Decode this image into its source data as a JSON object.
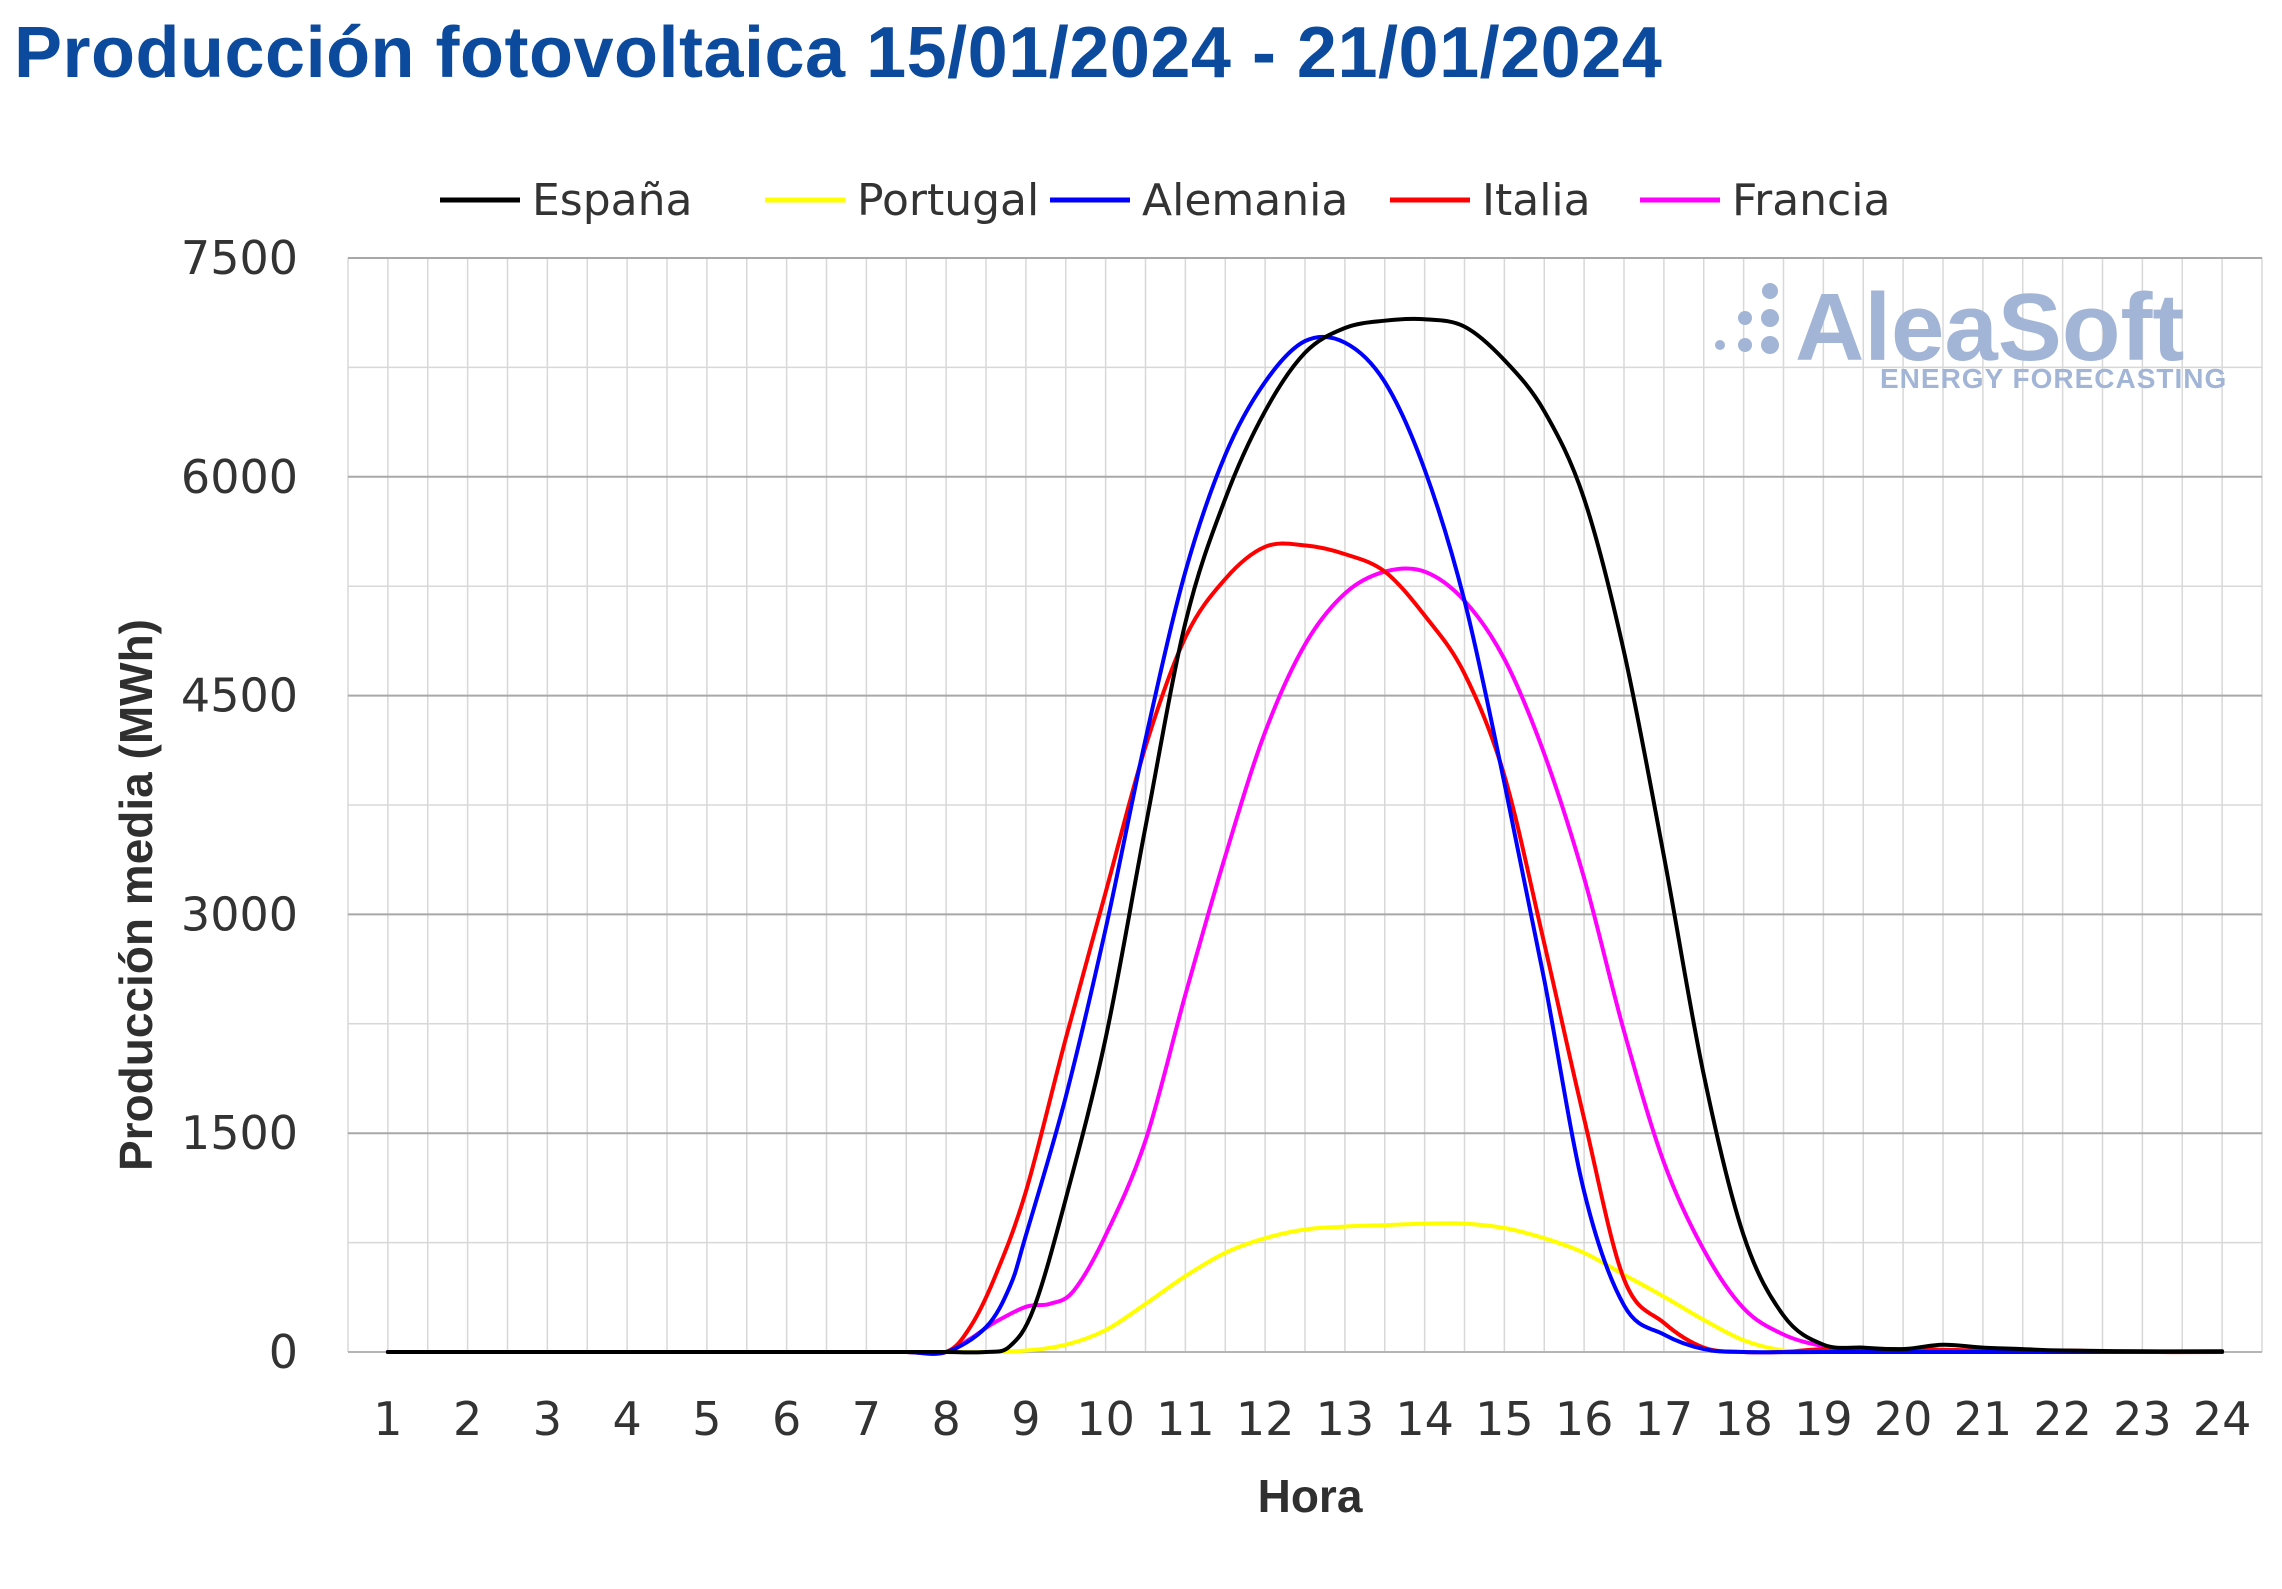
{
  "title": "Producción fotovoltaica 15/01/2024 - 21/01/2024",
  "watermark": {
    "name": "AleaSoft",
    "tagline": "ENERGY FORECASTING",
    "color": "#a3b5d6"
  },
  "chart_data": {
    "type": "line",
    "xlabel": "Hora",
    "ylabel": "Producción media (MWh)",
    "ylim": [
      0,
      7500
    ],
    "yticks": [
      0,
      1500,
      3000,
      4500,
      6000,
      7500
    ],
    "x": [
      1,
      2,
      3,
      4,
      5,
      6,
      7,
      8,
      9,
      10,
      11,
      12,
      13,
      14,
      15,
      16,
      17,
      18,
      19,
      20,
      21,
      22,
      23,
      24
    ],
    "legend_position": "top",
    "grid": true,
    "series": [
      {
        "name": "España",
        "color": "#000000",
        "points": [
          [
            1,
            0
          ],
          [
            2,
            0
          ],
          [
            3,
            0
          ],
          [
            4,
            0
          ],
          [
            5,
            0
          ],
          [
            6,
            0
          ],
          [
            7,
            0
          ],
          [
            7.5,
            0
          ],
          [
            8,
            0
          ],
          [
            8.5,
            0
          ],
          [
            8.8,
            40
          ],
          [
            9.1,
            300
          ],
          [
            9.5,
            1050
          ],
          [
            10,
            2150
          ],
          [
            10.5,
            3600
          ],
          [
            11,
            5000
          ],
          [
            11.5,
            5850
          ],
          [
            12,
            6450
          ],
          [
            12.5,
            6850
          ],
          [
            13,
            7020
          ],
          [
            13.5,
            7070
          ],
          [
            14,
            7080
          ],
          [
            14.5,
            7030
          ],
          [
            15,
            6800
          ],
          [
            15.5,
            6450
          ],
          [
            16,
            5850
          ],
          [
            16.5,
            4800
          ],
          [
            17,
            3400
          ],
          [
            17.5,
            1900
          ],
          [
            18,
            800
          ],
          [
            18.5,
            250
          ],
          [
            19,
            50
          ],
          [
            19.5,
            30
          ],
          [
            20,
            20
          ],
          [
            20.5,
            50
          ],
          [
            21,
            30
          ],
          [
            21.5,
            20
          ],
          [
            22,
            10
          ],
          [
            23,
            5
          ],
          [
            24,
            5
          ]
        ]
      },
      {
        "name": "Portugal",
        "color": "#ffff00",
        "points": [
          [
            1,
            0
          ],
          [
            2,
            0
          ],
          [
            3,
            0
          ],
          [
            4,
            0
          ],
          [
            5,
            0
          ],
          [
            6,
            0
          ],
          [
            7,
            0
          ],
          [
            7.5,
            0
          ],
          [
            8,
            0
          ],
          [
            8.5,
            0
          ],
          [
            9,
            10
          ],
          [
            9.5,
            50
          ],
          [
            10,
            150
          ],
          [
            10.5,
            330
          ],
          [
            11,
            520
          ],
          [
            11.5,
            680
          ],
          [
            12,
            780
          ],
          [
            12.5,
            840
          ],
          [
            13,
            860
          ],
          [
            13.5,
            870
          ],
          [
            14,
            880
          ],
          [
            14.5,
            880
          ],
          [
            15,
            850
          ],
          [
            15.5,
            780
          ],
          [
            16,
            680
          ],
          [
            16.5,
            530
          ],
          [
            17,
            380
          ],
          [
            17.5,
            220
          ],
          [
            18,
            80
          ],
          [
            18.5,
            10
          ],
          [
            19,
            0
          ],
          [
            20,
            0
          ],
          [
            21,
            0
          ],
          [
            22,
            0
          ],
          [
            23,
            0
          ],
          [
            24,
            0
          ]
        ]
      },
      {
        "name": "Alemania",
        "color": "#0000ff",
        "points": [
          [
            1,
            0
          ],
          [
            2,
            0
          ],
          [
            3,
            0
          ],
          [
            4,
            0
          ],
          [
            5,
            0
          ],
          [
            6,
            0
          ],
          [
            7,
            0
          ],
          [
            7.5,
            0
          ],
          [
            8,
            0
          ],
          [
            8.5,
            170
          ],
          [
            8.8,
            450
          ],
          [
            9,
            800
          ],
          [
            9.5,
            1750
          ],
          [
            10,
            2900
          ],
          [
            10.5,
            4200
          ],
          [
            11,
            5350
          ],
          [
            11.5,
            6150
          ],
          [
            12,
            6650
          ],
          [
            12.5,
            6930
          ],
          [
            13,
            6920
          ],
          [
            13.5,
            6650
          ],
          [
            14,
            6050
          ],
          [
            14.5,
            5150
          ],
          [
            15,
            3900
          ],
          [
            15.5,
            2550
          ],
          [
            16,
            1100
          ],
          [
            16.5,
            320
          ],
          [
            17,
            120
          ],
          [
            17.5,
            20
          ],
          [
            18,
            0
          ],
          [
            19,
            0
          ],
          [
            20,
            0
          ],
          [
            21,
            0
          ],
          [
            22,
            0
          ],
          [
            23,
            0
          ],
          [
            24,
            0
          ]
        ]
      },
      {
        "name": "Italia",
        "color": "#ff0000",
        "points": [
          [
            1,
            0
          ],
          [
            2,
            0
          ],
          [
            3,
            0
          ],
          [
            4,
            0
          ],
          [
            5,
            0
          ],
          [
            6,
            0
          ],
          [
            7,
            0
          ],
          [
            7.5,
            0
          ],
          [
            8,
            0
          ],
          [
            8.3,
            170
          ],
          [
            8.6,
            500
          ],
          [
            9,
            1100
          ],
          [
            9.5,
            2150
          ],
          [
            10,
            3150
          ],
          [
            10.5,
            4150
          ],
          [
            11,
            4900
          ],
          [
            11.5,
            5300
          ],
          [
            12,
            5520
          ],
          [
            12.5,
            5530
          ],
          [
            13,
            5470
          ],
          [
            13.5,
            5350
          ],
          [
            14,
            5050
          ],
          [
            14.5,
            4650
          ],
          [
            15,
            3950
          ],
          [
            15.5,
            2800
          ],
          [
            16,
            1600
          ],
          [
            16.5,
            500
          ],
          [
            17,
            200
          ],
          [
            17.5,
            30
          ],
          [
            18,
            0
          ],
          [
            18.5,
            0
          ],
          [
            19,
            20
          ],
          [
            20,
            20
          ],
          [
            21,
            10
          ],
          [
            22,
            10
          ],
          [
            23,
            0
          ],
          [
            24,
            0
          ]
        ]
      },
      {
        "name": "Francia",
        "color": "#ff00ff",
        "points": [
          [
            1,
            0
          ],
          [
            2,
            0
          ],
          [
            3,
            0
          ],
          [
            4,
            0
          ],
          [
            5,
            0
          ],
          [
            6,
            0
          ],
          [
            7,
            0
          ],
          [
            7.5,
            0
          ],
          [
            8,
            0
          ],
          [
            8.3,
            90
          ],
          [
            8.6,
            200
          ],
          [
            9,
            310
          ],
          [
            9.3,
            330
          ],
          [
            9.6,
            420
          ],
          [
            10,
            800
          ],
          [
            10.5,
            1450
          ],
          [
            11,
            2450
          ],
          [
            11.5,
            3400
          ],
          [
            12,
            4250
          ],
          [
            12.5,
            4850
          ],
          [
            13,
            5200
          ],
          [
            13.5,
            5350
          ],
          [
            14,
            5350
          ],
          [
            14.5,
            5150
          ],
          [
            15,
            4750
          ],
          [
            15.5,
            4100
          ],
          [
            16,
            3250
          ],
          [
            16.5,
            2200
          ],
          [
            17,
            1300
          ],
          [
            17.5,
            700
          ],
          [
            18,
            300
          ],
          [
            18.5,
            120
          ],
          [
            19,
            40
          ],
          [
            19.5,
            10
          ],
          [
            20,
            0
          ],
          [
            21,
            0
          ],
          [
            22,
            0
          ],
          [
            23,
            0
          ],
          [
            24,
            0
          ]
        ]
      }
    ]
  }
}
